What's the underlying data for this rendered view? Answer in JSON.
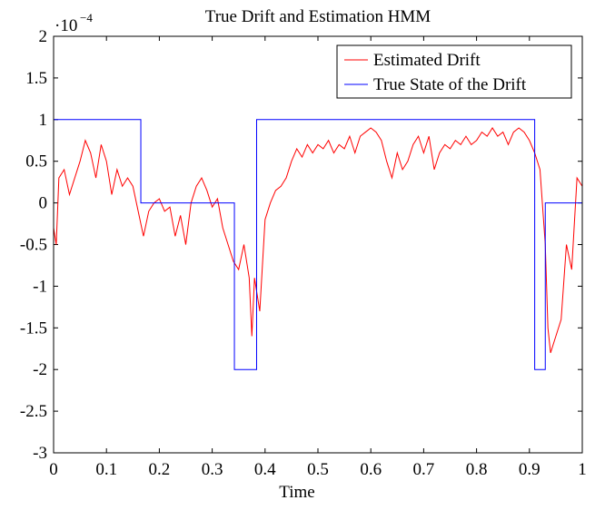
{
  "chart_data": {
    "type": "line",
    "title": "True Drift and Estimation HMM",
    "x_label": "Time",
    "y_scale_base": "·10",
    "y_scale_exponent": "−4",
    "xlim": [
      0,
      1
    ],
    "xticks": [
      0,
      0.1,
      0.2,
      0.3,
      0.4,
      0.5,
      0.6,
      0.7,
      0.8,
      0.9,
      1
    ],
    "ylim": [
      -3,
      2
    ],
    "yticks": [
      -3,
      -2.5,
      -2,
      -1.5,
      -1,
      -0.5,
      0,
      0.5,
      1,
      1.5,
      2
    ],
    "legend": "upper right",
    "series": [
      {
        "name": "Estimated Drift",
        "color": "#ff0000",
        "x": [
          0,
          0.005,
          0.01,
          0.02,
          0.03,
          0.04,
          0.05,
          0.06,
          0.07,
          0.08,
          0.09,
          0.1,
          0.11,
          0.12,
          0.13,
          0.14,
          0.15,
          0.16,
          0.17,
          0.18,
          0.19,
          0.2,
          0.21,
          0.22,
          0.23,
          0.24,
          0.25,
          0.26,
          0.27,
          0.28,
          0.29,
          0.3,
          0.31,
          0.32,
          0.33,
          0.34,
          0.35,
          0.36,
          0.37,
          0.375,
          0.38,
          0.39,
          0.4,
          0.41,
          0.42,
          0.43,
          0.44,
          0.45,
          0.46,
          0.47,
          0.48,
          0.49,
          0.5,
          0.51,
          0.52,
          0.53,
          0.54,
          0.55,
          0.56,
          0.57,
          0.58,
          0.59,
          0.6,
          0.61,
          0.62,
          0.63,
          0.64,
          0.65,
          0.66,
          0.67,
          0.68,
          0.69,
          0.7,
          0.71,
          0.72,
          0.73,
          0.74,
          0.75,
          0.76,
          0.77,
          0.78,
          0.79,
          0.8,
          0.81,
          0.82,
          0.83,
          0.84,
          0.85,
          0.86,
          0.87,
          0.88,
          0.89,
          0.9,
          0.91,
          0.92,
          0.93,
          0.935,
          0.94,
          0.95,
          0.96,
          0.97,
          0.98,
          0.99,
          1
        ],
        "values": [
          -0.3,
          -0.5,
          0.3,
          0.4,
          0.1,
          0.3,
          0.5,
          0.75,
          0.6,
          0.3,
          0.7,
          0.5,
          0.1,
          0.4,
          0.2,
          0.3,
          0.2,
          -0.1,
          -0.4,
          -0.1,
          0,
          0.05,
          -0.1,
          -0.05,
          -0.4,
          -0.15,
          -0.5,
          0,
          0.2,
          0.3,
          0.15,
          -0.05,
          0.05,
          -0.3,
          -0.5,
          -0.7,
          -0.8,
          -0.5,
          -0.9,
          -1.6,
          -0.9,
          -1.3,
          -0.2,
          0,
          0.15,
          0.2,
          0.3,
          0.5,
          0.65,
          0.55,
          0.7,
          0.6,
          0.7,
          0.65,
          0.75,
          0.6,
          0.7,
          0.65,
          0.8,
          0.6,
          0.8,
          0.85,
          0.9,
          0.85,
          0.75,
          0.5,
          0.3,
          0.6,
          0.4,
          0.5,
          0.7,
          0.8,
          0.6,
          0.8,
          0.4,
          0.6,
          0.7,
          0.65,
          0.75,
          0.7,
          0.8,
          0.7,
          0.75,
          0.85,
          0.8,
          0.9,
          0.8,
          0.85,
          0.7,
          0.85,
          0.9,
          0.85,
          0.75,
          0.6,
          0.4,
          -0.5,
          -1.5,
          -1.8,
          -1.6,
          -1.4,
          -0.5,
          -0.8,
          0.3,
          0.2
        ]
      },
      {
        "name": "True State of the Drift",
        "color": "#0000ff",
        "x": [
          0,
          0.165,
          0.165,
          0.342,
          0.342,
          0.384,
          0.384,
          0.91,
          0.91,
          0.93,
          0.93,
          1
        ],
        "values": [
          1,
          1,
          0,
          0,
          -2,
          -2,
          1,
          1,
          -2,
          -2,
          0,
          0
        ]
      }
    ]
  }
}
